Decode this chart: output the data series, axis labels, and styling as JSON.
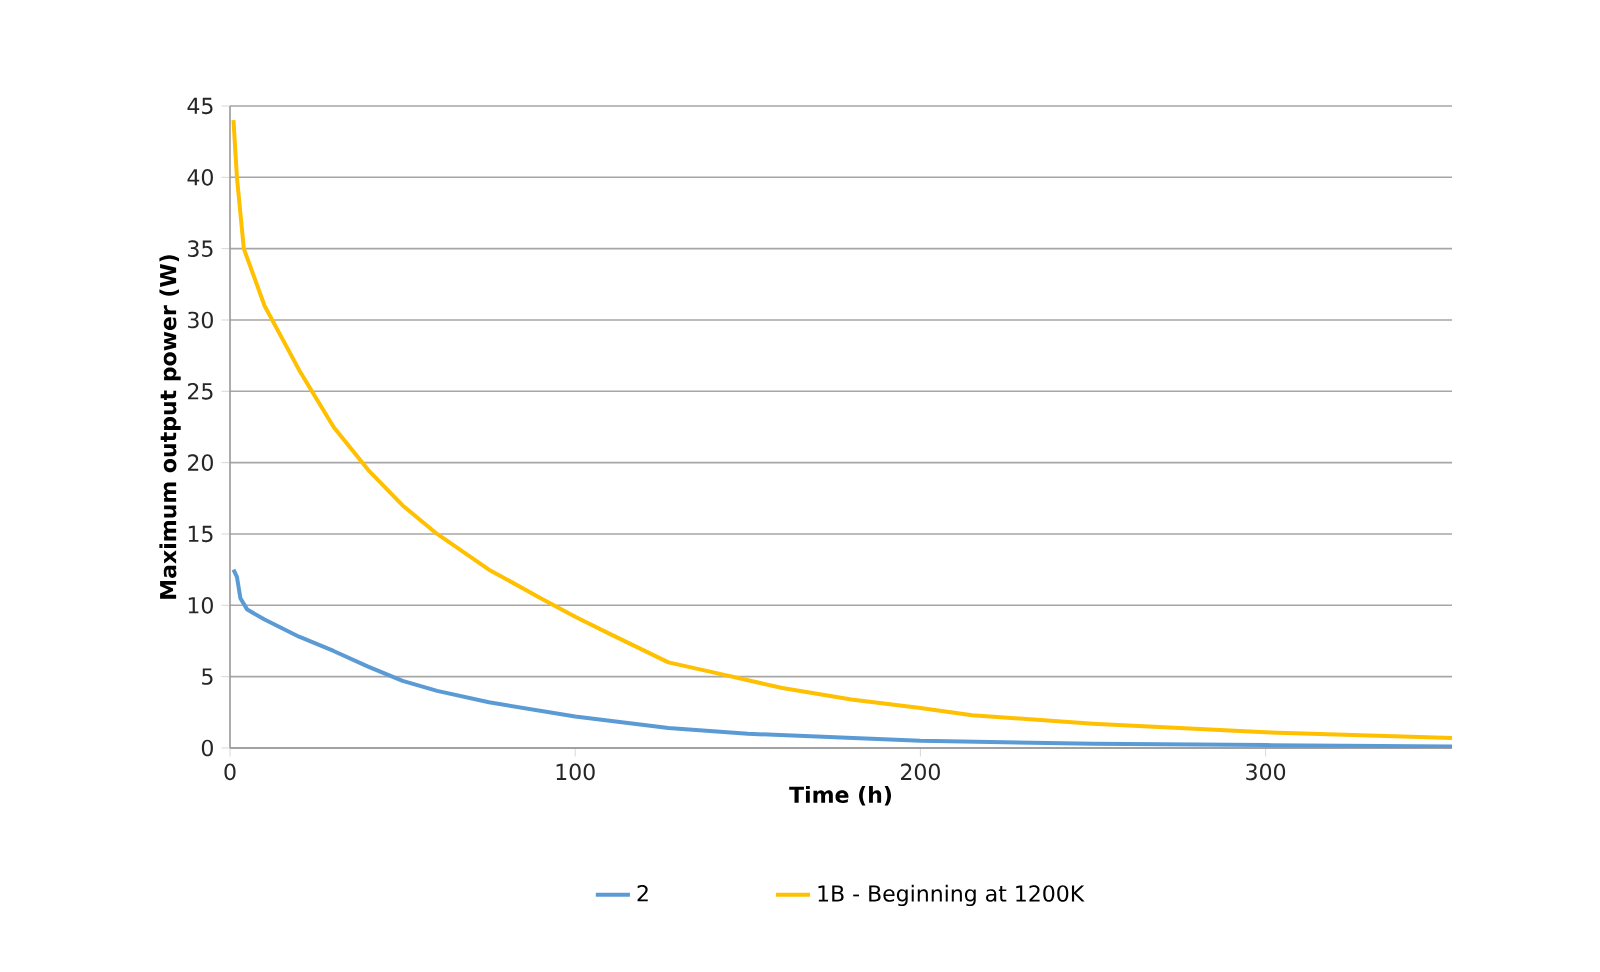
{
  "chart_data": {
    "type": "line",
    "xlabel": "Time (h)",
    "ylabel": "Maximum output power (W)",
    "xlim": [
      0,
      354
    ],
    "xticks": [
      0,
      100,
      200,
      300
    ],
    "ylim": [
      0,
      45
    ],
    "yticks": [
      0,
      5,
      10,
      15,
      20,
      25,
      30,
      35,
      40,
      45
    ],
    "grid": "y",
    "legend": "bottom",
    "marker": "none",
    "line_style": "solid",
    "series": [
      {
        "name": "2",
        "color": "#5b9bd5",
        "x": [
          1,
          2,
          3,
          5,
          10,
          20,
          30,
          40,
          50,
          60,
          75,
          100,
          127,
          150,
          200,
          250,
          300,
          354
        ],
        "values": [
          12.5,
          12,
          10.5,
          9.7,
          9,
          7.8,
          6.8,
          5.7,
          4.7,
          4,
          3.2,
          2.2,
          1.4,
          1,
          0.5,
          0.3,
          0.2,
          0.1
        ]
      },
      {
        "name": "1B - Beginning at 1200K",
        "color": "#ffc000",
        "x": [
          1,
          2,
          4,
          10,
          20,
          30,
          40,
          50,
          60,
          75,
          90,
          100,
          110,
          127,
          140,
          160,
          180,
          200,
          215,
          250,
          300,
          354
        ],
        "values": [
          44,
          40,
          35,
          31,
          26.5,
          22.5,
          19.5,
          17,
          15,
          12.5,
          10.5,
          9.2,
          8,
          6,
          5.3,
          4.2,
          3.4,
          2.8,
          2.3,
          1.7,
          1.1,
          0.7
        ]
      }
    ]
  }
}
